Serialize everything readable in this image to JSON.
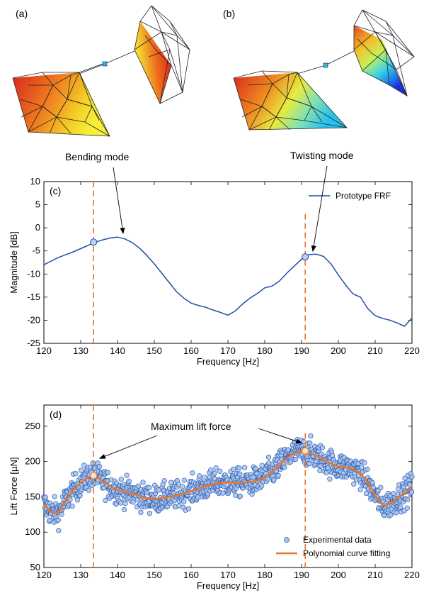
{
  "panels": {
    "a": "(a)",
    "b": "(b)"
  },
  "chart_data": [
    {
      "type": "line",
      "panel_label": "(c)",
      "xlabel": "Frequency [Hz]",
      "ylabel": "Magnitude [dB]",
      "xlim": [
        120,
        220
      ],
      "ylim": [
        -25,
        10
      ],
      "xticks": [
        120,
        130,
        140,
        150,
        160,
        170,
        180,
        190,
        200,
        210,
        220
      ],
      "yticks": [
        -25,
        -20,
        -15,
        -10,
        -5,
        0,
        5,
        10
      ],
      "grid": false,
      "legend_position": "top-right",
      "series": [
        {
          "name": "Prototype FRF",
          "color": "#1f4ea3",
          "x": [
            120,
            122,
            124,
            126,
            128,
            130,
            132,
            134,
            136,
            138,
            140,
            142,
            144,
            146,
            148,
            150,
            152,
            154,
            156,
            158,
            160,
            162,
            164,
            166,
            168,
            170,
            172,
            174,
            176,
            178,
            180,
            182,
            184,
            186,
            188,
            190,
            192,
            194,
            196,
            198,
            200,
            202,
            204,
            206,
            208,
            210,
            212,
            214,
            216,
            218,
            220
          ],
          "values": [
            -8,
            -7.2,
            -6.4,
            -5.8,
            -5.2,
            -4.5,
            -3.8,
            -3.1,
            -2.6,
            -2.2,
            -2.0,
            -2.4,
            -3.2,
            -4.4,
            -6.0,
            -7.8,
            -9.8,
            -11.8,
            -13.8,
            -15.2,
            -16.3,
            -16.8,
            -17.2,
            -17.8,
            -18.3,
            -18.9,
            -18.0,
            -16.5,
            -15.2,
            -14.2,
            -13.0,
            -12.6,
            -11.5,
            -9.8,
            -8.3,
            -6.8,
            -5.8,
            -5.7,
            -6.2,
            -7.8,
            -10.2,
            -12.4,
            -14.3,
            -15.0,
            -17.5,
            -19.0,
            -19.6,
            -20.0,
            -20.6,
            -21.3,
            -19.5
          ]
        }
      ],
      "markers": [
        {
          "x": 133.5,
          "y": -3.1
        },
        {
          "x": 191,
          "y": -6.3
        }
      ],
      "vlines": [
        133.5,
        191
      ],
      "annotations": [
        {
          "text": "Bending mode",
          "target": {
            "x": 141,
            "y": -2.0
          }
        },
        {
          "text": "Twisting mode",
          "target": {
            "x": 194,
            "y": -5.7
          }
        }
      ]
    },
    {
      "type": "scatter",
      "panel_label": "(d)",
      "xlabel": "Frequency [Hz]",
      "ylabel": "Lift Force [µN]",
      "xlim": [
        120,
        220
      ],
      "ylim": [
        50,
        280
      ],
      "xticks": [
        120,
        130,
        140,
        150,
        160,
        170,
        180,
        190,
        200,
        210,
        220
      ],
      "yticks": [
        50,
        100,
        150,
        200,
        250
      ],
      "grid": false,
      "legend_position": "bottom-right",
      "scatter_spread": 18,
      "series": [
        {
          "name": "Experimental data",
          "color": "#1f4ea3",
          "x": [
            120,
            122,
            124,
            126,
            128,
            130,
            132,
            134,
            136,
            138,
            140,
            142,
            144,
            146,
            148,
            150,
            152,
            154,
            156,
            158,
            160,
            162,
            164,
            166,
            168,
            170,
            172,
            174,
            176,
            178,
            180,
            182,
            184,
            186,
            188,
            190,
            192,
            194,
            196,
            198,
            200,
            202,
            204,
            206,
            208,
            210,
            212,
            214,
            216,
            218,
            220
          ],
          "values": [
            140,
            128,
            128,
            145,
            160,
            170,
            178,
            180,
            172,
            165,
            160,
            157,
            155,
            151,
            148,
            147,
            148,
            150,
            152,
            155,
            158,
            162,
            165,
            168,
            170,
            170,
            170,
            170,
            171,
            173,
            178,
            186,
            195,
            205,
            212,
            215,
            213,
            208,
            203,
            197,
            193,
            192,
            189,
            183,
            170,
            152,
            138,
            140,
            148,
            155,
            165
          ]
        },
        {
          "name": "Polynomial curve fitting",
          "color": "#e8762b",
          "x": [
            120,
            122,
            124,
            126,
            128,
            130,
            132,
            134,
            136,
            138,
            140,
            142,
            144,
            146,
            148,
            150,
            152,
            154,
            156,
            158,
            160,
            162,
            164,
            166,
            168,
            170,
            172,
            174,
            176,
            178,
            180,
            182,
            184,
            186,
            188,
            190,
            192,
            194,
            196,
            198,
            200,
            202,
            204,
            206,
            208,
            210,
            212,
            214,
            216,
            218,
            220
          ],
          "values": [
            140,
            128,
            128,
            145,
            160,
            170,
            178,
            180,
            172,
            165,
            160,
            157,
            155,
            151,
            148,
            147,
            148,
            150,
            152,
            155,
            158,
            162,
            165,
            168,
            170,
            170,
            170,
            170,
            171,
            173,
            178,
            186,
            195,
            205,
            212,
            215,
            213,
            208,
            203,
            197,
            193,
            192,
            189,
            183,
            170,
            152,
            138,
            140,
            148,
            155,
            165
          ]
        }
      ],
      "markers": [
        {
          "x": 133.5,
          "y": 180
        },
        {
          "x": 191,
          "y": 215
        }
      ],
      "vlines": [
        133.5,
        191
      ],
      "annotations": [
        {
          "text": "Maximum lift force",
          "targets": [
            {
              "x": 134,
              "y": 205
            },
            {
              "x": 191,
              "y": 228
            }
          ]
        }
      ]
    }
  ],
  "colors": {
    "frf_line": "#1f4ea3",
    "scatter_fill": "#a9c4ec",
    "scatter_edge": "#2f5db3",
    "fit_line": "#e8762b",
    "marker_fill": "#b9d0f2"
  }
}
